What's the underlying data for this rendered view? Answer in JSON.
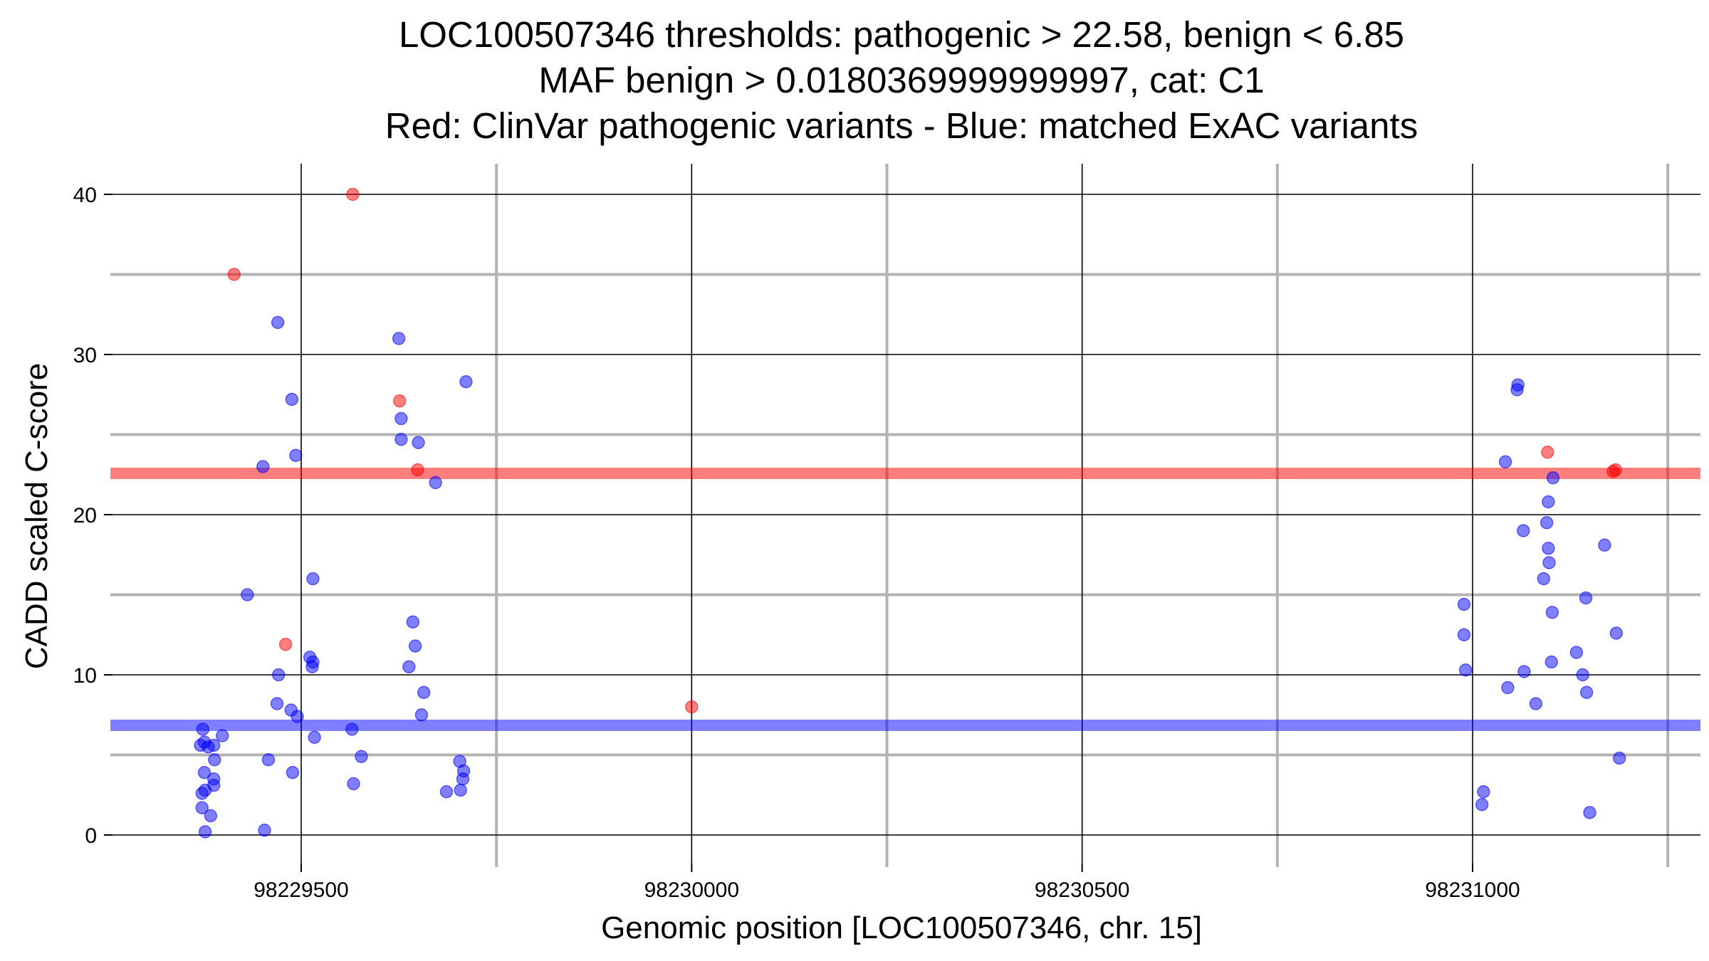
{
  "chart_data": {
    "type": "scatter",
    "title_lines": [
      "LOC100507346 thresholds: pathogenic > 22.58, benign < 6.85",
      "MAF benign > 0.0180369999999997, cat: C1",
      "Red: ClinVar pathogenic variants - Blue: matched ExAC variants"
    ],
    "xlabel": "Genomic position [LOC100507346, chr. 15]",
    "ylabel": "CADD scaled C-score",
    "xlim": [
      98229245,
      98231250
    ],
    "ylim": [
      -2,
      42
    ],
    "x_ticks": [
      98229500,
      98230000,
      98230500,
      98231000
    ],
    "x_tick_labels": [
      "98229500",
      "98230000",
      "98230500",
      "98231000"
    ],
    "x_minor_ticks": [
      98229750,
      98230250,
      98230750,
      98231250
    ],
    "y_ticks": [
      0,
      10,
      20,
      30,
      40
    ],
    "y_tick_labels": [
      "0",
      "10",
      "20",
      "30",
      "40"
    ],
    "y_minor_ticks": [
      5,
      15,
      25,
      35
    ],
    "grid": true,
    "thresholds": [
      {
        "name": "pathogenic",
        "value": 22.58,
        "color": "#ff0000"
      },
      {
        "name": "benign",
        "value": 6.85,
        "color": "#0000ff"
      }
    ],
    "series": [
      {
        "color": "#ff0000",
        "points": [
          [
            98229414,
            35
          ],
          [
            98229480,
            11.9
          ],
          [
            98229566,
            40
          ],
          [
            98229626,
            27.1
          ],
          [
            98229649,
            22.8
          ],
          [
            98230000,
            8
          ],
          [
            98231096,
            23.9
          ],
          [
            98231180,
            22.7
          ],
          [
            98231183,
            22.8
          ]
        ]
      },
      {
        "color": "#0000ff",
        "points": [
          [
            98229374,
            6.6
          ],
          [
            98229388,
            5.6
          ],
          [
            98229399,
            6.2
          ],
          [
            98229371,
            5.6
          ],
          [
            98229381,
            5.5
          ],
          [
            98229389,
            4.7
          ],
          [
            98229376,
            5.8
          ],
          [
            98229376,
            3.9
          ],
          [
            98229388,
            3.5
          ],
          [
            98229388,
            3.1
          ],
          [
            98229373,
            2.6
          ],
          [
            98229377,
            2.8
          ],
          [
            98229373,
            1.7
          ],
          [
            98229384,
            1.2
          ],
          [
            98229377,
            0.2
          ],
          [
            98229431,
            15.0
          ],
          [
            98229451,
            23.0
          ],
          [
            98229470,
            32.0
          ],
          [
            98229488,
            27.2
          ],
          [
            98229493,
            23.7
          ],
          [
            98229515,
            16.0
          ],
          [
            98229469,
            8.2
          ],
          [
            98229471,
            10.0
          ],
          [
            98229487,
            7.8
          ],
          [
            98229495,
            7.4
          ],
          [
            98229511,
            11.1
          ],
          [
            98229514,
            10.5
          ],
          [
            98229515,
            10.8
          ],
          [
            98229517,
            6.1
          ],
          [
            98229458,
            4.7
          ],
          [
            98229489,
            3.9
          ],
          [
            98229453,
            0.3
          ],
          [
            98229565,
            6.6
          ],
          [
            98229567,
            3.2
          ],
          [
            98229577,
            4.9
          ],
          [
            98229625,
            31.0
          ],
          [
            98229628,
            26.0
          ],
          [
            98229628,
            24.7
          ],
          [
            98229650,
            24.5
          ],
          [
            98229672,
            22.0
          ],
          [
            98229711,
            28.3
          ],
          [
            98229643,
            13.3
          ],
          [
            98229646,
            11.8
          ],
          [
            98229638,
            10.5
          ],
          [
            98229657,
            8.9
          ],
          [
            98229654,
            7.5
          ],
          [
            98229703,
            4.6
          ],
          [
            98229708,
            4.0
          ],
          [
            98229707,
            3.5
          ],
          [
            98229704,
            2.8
          ],
          [
            98229686,
            2.7
          ],
          [
            98230989,
            14.4
          ],
          [
            98230989,
            12.5
          ],
          [
            98230991,
            10.3
          ],
          [
            98231014,
            2.7
          ],
          [
            98231012,
            1.9
          ],
          [
            98231042,
            23.3
          ],
          [
            98231058,
            28.1
          ],
          [
            98231057,
            27.8
          ],
          [
            98231065,
            19.0
          ],
          [
            98231045,
            9.2
          ],
          [
            98231066,
            10.2
          ],
          [
            98231103,
            22.3
          ],
          [
            98231097,
            20.8
          ],
          [
            98231095,
            19.5
          ],
          [
            98231097,
            17.9
          ],
          [
            98231098,
            17.0
          ],
          [
            98231091,
            16.0
          ],
          [
            98231102,
            13.9
          ],
          [
            98231145,
            14.8
          ],
          [
            98231169,
            18.1
          ],
          [
            98231081,
            8.2
          ],
          [
            98231101,
            10.8
          ],
          [
            98231133,
            11.4
          ],
          [
            98231141,
            10.0
          ],
          [
            98231146,
            8.9
          ],
          [
            98231184,
            12.6
          ],
          [
            98231188,
            4.8
          ],
          [
            98231150,
            1.4
          ]
        ]
      }
    ]
  }
}
